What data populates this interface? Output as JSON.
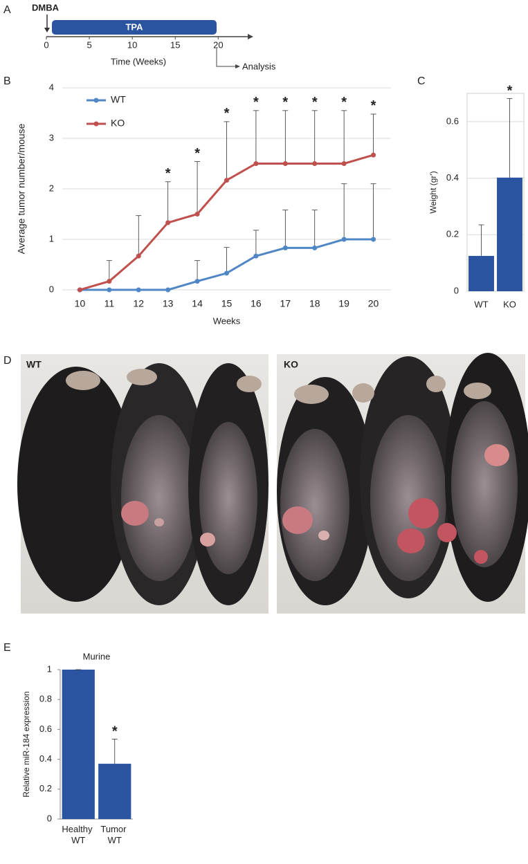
{
  "panel_labels": [
    "A",
    "B",
    "C",
    "D",
    "E"
  ],
  "timeline": {
    "start_label": "DMBA",
    "bar_label": "TPA",
    "xlim": [
      0,
      24
    ],
    "ticks": [
      0,
      5,
      10,
      15,
      20
    ],
    "axis_label": "Time (Weeks)",
    "end_label": "Analysis"
  },
  "chart_data": [
    {
      "type": "line",
      "xlabel": "Weeks",
      "ylabel": "Average tumor number/mouse",
      "x": [
        10,
        11,
        12,
        13,
        14,
        15,
        16,
        17,
        18,
        19,
        20
      ],
      "xlim": [
        9.4,
        20.6
      ],
      "xticks": [
        10,
        11,
        12,
        13,
        14,
        15,
        16,
        17,
        18,
        19,
        20
      ],
      "ylim": [
        0,
        4
      ],
      "yticks": [
        0,
        1,
        2,
        3,
        4
      ],
      "grid": true,
      "legend": "upper left",
      "series": [
        {
          "name": "WT",
          "color": "#4f86c6",
          "values": [
            0,
            0,
            0,
            0,
            0.17,
            0.33,
            0.67,
            0.83,
            0.83,
            1.0,
            1.0
          ],
          "errors": [
            0,
            0,
            0,
            0,
            0.41,
            0.51,
            0.51,
            0.75,
            0.75,
            1.1,
            1.1
          ]
        },
        {
          "name": "KO",
          "color": "#c0504d",
          "values": [
            0,
            0.17,
            0.67,
            1.33,
            1.5,
            2.17,
            2.5,
            2.5,
            2.5,
            2.5,
            2.67
          ],
          "errors": [
            0,
            0.41,
            0.8,
            0.81,
            1.04,
            1.16,
            1.05,
            1.05,
            1.05,
            1.05,
            0.81
          ]
        }
      ],
      "annotations": [
        {
          "x": 13,
          "label": "*"
        },
        {
          "x": 14,
          "label": "*"
        },
        {
          "x": 15,
          "label": "*"
        },
        {
          "x": 16,
          "label": "*"
        },
        {
          "x": 17,
          "label": "*"
        },
        {
          "x": 18,
          "label": "*"
        },
        {
          "x": 19,
          "label": "*"
        },
        {
          "x": 20,
          "label": "*"
        }
      ]
    },
    {
      "type": "bar",
      "ylabel": "Weight (gr')",
      "categories": [
        "WT",
        "KO"
      ],
      "values": [
        0.125,
        0.402
      ],
      "errors": [
        0.11,
        0.28
      ],
      "color": "#2b54a0",
      "ylim": [
        0,
        0.7
      ],
      "yticks": [
        0,
        0.2,
        0.4,
        0.6
      ],
      "grid": true,
      "frame": true,
      "annotations": [
        {
          "index": 1,
          "label": "*"
        }
      ]
    },
    {
      "type": "bar",
      "title": "Murine",
      "ylabel": "Relative miR-184 expression",
      "categories": [
        "Healthy WT",
        "Tumor WT"
      ],
      "values": [
        1,
        0.37
      ],
      "errors": [
        0,
        0.165
      ],
      "color": "#2b54a0",
      "ylim": [
        0,
        1
      ],
      "yticks": [
        0,
        0.2,
        0.4,
        0.6,
        0.8,
        1
      ],
      "grid": false,
      "frame": false,
      "annotations": [
        {
          "index": 1,
          "label": "*"
        }
      ]
    }
  ],
  "photos": [
    {
      "label": "WT"
    },
    {
      "label": "KO"
    }
  ]
}
